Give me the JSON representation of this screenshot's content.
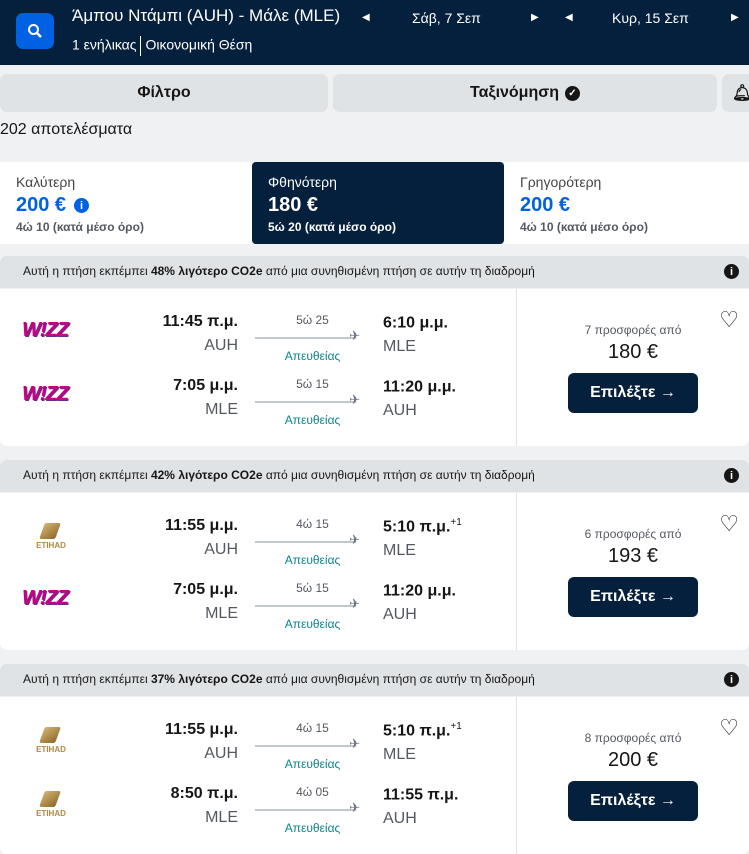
{
  "header": {
    "route": "Άμπου Ντάμπι (AUH) - Μάλε (MLE)",
    "passengers": "1 ενήλικας",
    "cabin": "Οικονομική Θέση",
    "depart_date": "Σάβ, 7 Σεπ",
    "return_date": "Κυρ, 15 Σεπ"
  },
  "toolbar": {
    "filter": "Φίλτρο",
    "sort": "Ταξινόμηση"
  },
  "results_count": "202 αποτελέσματα",
  "tabs": [
    {
      "label": "Καλύτερη",
      "price": "200 €",
      "duration": "4ώ 10 (κατά μέσο όρο)",
      "selected": false
    },
    {
      "label": "Φθηνότερη",
      "price": "180 €",
      "duration": "5ώ 20 (κατά μέσο όρο)",
      "selected": true
    },
    {
      "label": "Γρηγορότερη",
      "price": "200 €",
      "duration": "4ώ 10 (κατά μέσο όρο)",
      "selected": false
    }
  ],
  "eco": {
    "pre": "Αυτή η πτήση εκπέμπει ",
    "post": " από μια συνηθισμένη πτήση σε αυτήν τη διαδρομή",
    "less": "λιγότερο CO2e"
  },
  "results": [
    {
      "eco_pct": "48%",
      "offers": "7 προσφορές από",
      "price": "180 €",
      "select": "Επιλέξτε →",
      "legs": [
        {
          "airline": "Wizz",
          "dep": "11:45 π.μ.",
          "from": "AUH",
          "duration": "5ώ 25",
          "stops": "Απευθείας",
          "arr": "6:10 μ.μ.",
          "to": "MLE",
          "plus": ""
        },
        {
          "airline": "Wizz",
          "dep": "7:05 μ.μ.",
          "from": "MLE",
          "duration": "5ώ 15",
          "stops": "Απευθείας",
          "arr": "11:20 μ.μ.",
          "to": "AUH",
          "plus": ""
        }
      ]
    },
    {
      "eco_pct": "42%",
      "offers": "6 προσφορές από",
      "price": "193 €",
      "select": "Επιλέξτε →",
      "legs": [
        {
          "airline": "Etihad",
          "dep": "11:55 μ.μ.",
          "from": "AUH",
          "duration": "4ώ 15",
          "stops": "Απευθείας",
          "arr": "5:10 π.μ.",
          "to": "MLE",
          "plus": "+1"
        },
        {
          "airline": "Wizz",
          "dep": "7:05 μ.μ.",
          "from": "MLE",
          "duration": "5ώ 15",
          "stops": "Απευθείας",
          "arr": "11:20 μ.μ.",
          "to": "AUH",
          "plus": ""
        }
      ]
    },
    {
      "eco_pct": "37%",
      "offers": "8 προσφορές από",
      "price": "200 €",
      "select": "Επιλέξτε →",
      "legs": [
        {
          "airline": "Etihad",
          "dep": "11:55 μ.μ.",
          "from": "AUH",
          "duration": "4ώ 15",
          "stops": "Απευθείας",
          "arr": "5:10 π.μ.",
          "to": "MLE",
          "plus": "+1"
        },
        {
          "airline": "Etihad",
          "dep": "8:50 π.μ.",
          "from": "MLE",
          "duration": "4ώ 05",
          "stops": "Απευθείας",
          "arr": "11:55 π.μ.",
          "to": "AUH",
          "plus": ""
        }
      ]
    }
  ],
  "logos": {
    "Wizz": "W!ZZ",
    "Etihad": "ETIHAD"
  },
  "colors": {
    "navy": "#05203c",
    "accent": "#0062e3",
    "direct": "#0c838a"
  }
}
